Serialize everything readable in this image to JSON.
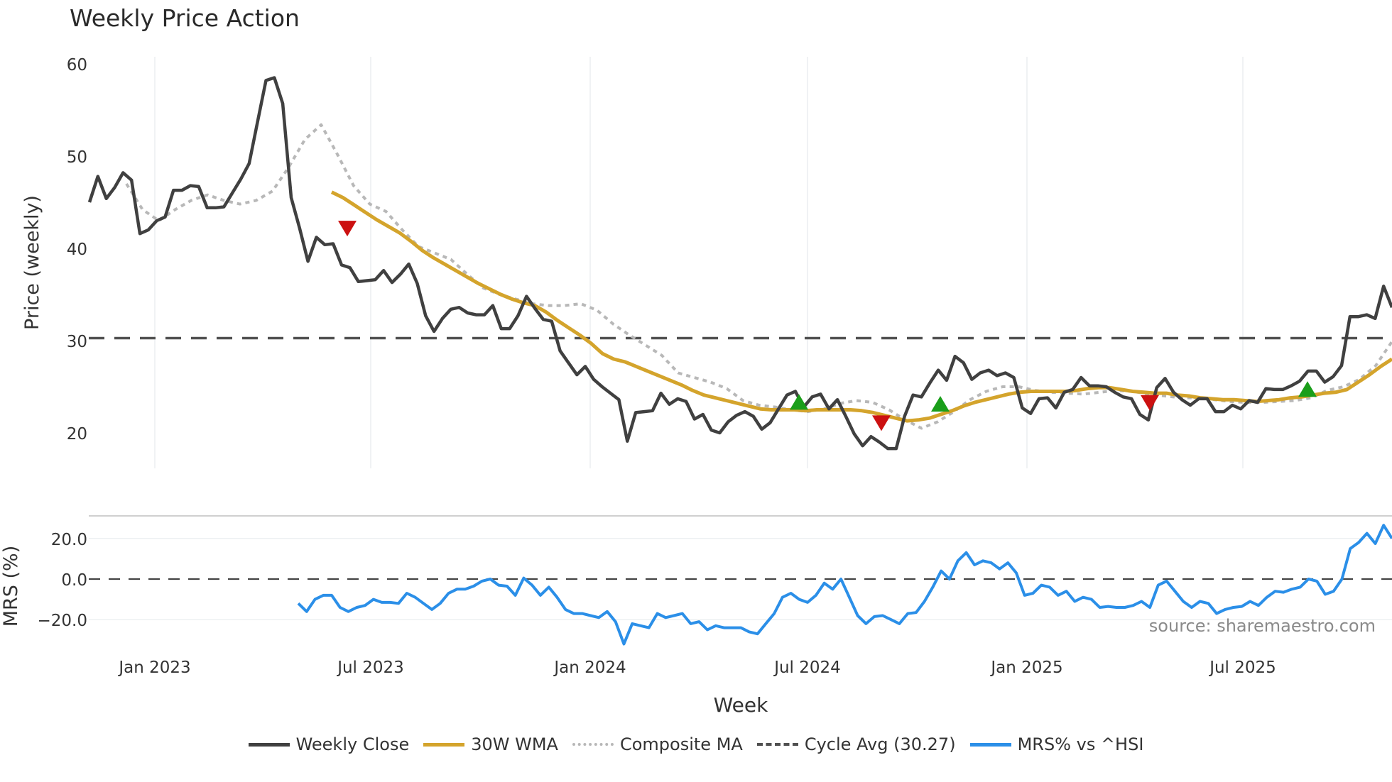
{
  "title": "Weekly Price Action",
  "source": "source: sharemaestro.com",
  "legend": [
    {
      "label": "Weekly Close",
      "color": "#404040",
      "style": "solid"
    },
    {
      "label": "30W WMA",
      "color": "#d4a42c",
      "style": "solid"
    },
    {
      "label": "Composite MA",
      "color": "#b8b8b8",
      "style": "dotted"
    },
    {
      "label": "Cycle Avg (30.27)",
      "color": "#505050",
      "style": "dashed"
    },
    {
      "label": "MRS% vs ^HSI",
      "color": "#2b8fe8",
      "style": "solid"
    }
  ],
  "chart_data": [
    {
      "type": "line",
      "title": "Weekly Price Action",
      "xlabel": "Week",
      "ylabel": "Price (weekly)",
      "ylim": [
        15.5,
        61
      ],
      "yticks": [
        20,
        30,
        40,
        50,
        60
      ],
      "xticks": [
        "Jan 2023",
        "Jul 2023",
        "Jan 2024",
        "Jul 2024",
        "Jan 2025",
        "Jul 2025"
      ],
      "grid": "vertical",
      "x_range": [
        "2022-11",
        "2025-10"
      ],
      "series": [
        {
          "name": "Weekly Close",
          "color": "#404040",
          "values": [
            45,
            47.8,
            45.4,
            46.6,
            48.2,
            47.4,
            41.6,
            42,
            43,
            43.4,
            46.3,
            46.3,
            46.8,
            46.7,
            44.4,
            44.4,
            44.5,
            46,
            47.5,
            49.2,
            53.7,
            58.2,
            58.5,
            55.7,
            45.5,
            42.2,
            38.6,
            41.2,
            40.4,
            40.5,
            38.2,
            37.9,
            36.4,
            36.5,
            36.6,
            37.6,
            36.3,
            37.2,
            38.3,
            36.2,
            32.7,
            31,
            32.4,
            33.4,
            33.6,
            33,
            32.8,
            32.8,
            33.8,
            31.3,
            31.3,
            32.7,
            34.8,
            33.5,
            32.3,
            32.1,
            28.9,
            27.6,
            26.3,
            27.2,
            25.8,
            25,
            24.3,
            23.6,
            19.1,
            22.2,
            22.3,
            22.4,
            24.3,
            23.1,
            23.7,
            23.4,
            21.5,
            22,
            20.3,
            20,
            21.2,
            21.9,
            22.3,
            21.8,
            20.4,
            21.1,
            22.6,
            24.1,
            24.5,
            22.8,
            23.9,
            24.2,
            22.6,
            23.6,
            21.8,
            19.9,
            18.6,
            19.6,
            19,
            18.3,
            18.3,
            21.8,
            24.1,
            23.9,
            25.4,
            26.8,
            25.7,
            28.3,
            27.6,
            25.8,
            26.5,
            26.8,
            26.2,
            26.5,
            26,
            22.7,
            22.1,
            23.7,
            23.8,
            22.7,
            24.4,
            24.7,
            26,
            25.1,
            25.1,
            25,
            24.4,
            23.9,
            23.7,
            22,
            21.4,
            24.9,
            25.9,
            24.4,
            23.6,
            23,
            23.7,
            23.7,
            22.3,
            22.3,
            23,
            22.6,
            23.5,
            23.3,
            24.8,
            24.7,
            24.7,
            25.1,
            25.6,
            26.7,
            26.7,
            25.5,
            26.1,
            27.3,
            32.6,
            32.6,
            32.8,
            32.4,
            35.9,
            33.6
          ]
        },
        {
          "name": "30W WMA",
          "color": "#d4a42c",
          "values": [
            46.1,
            45.5,
            44.7,
            43.9,
            43.1,
            42.4,
            41.7,
            40.8,
            39.8,
            39,
            38.3,
            37.6,
            36.9,
            36.2,
            35.6,
            35,
            34.5,
            34.1,
            33.8,
            33.1,
            32.2,
            31.4,
            30.6,
            29.7,
            28.6,
            28,
            27.7,
            27.2,
            26.7,
            26.2,
            25.7,
            25.2,
            24.6,
            24.1,
            23.8,
            23.5,
            23.2,
            22.9,
            22.6,
            22.5,
            22.5,
            22.5,
            22.4,
            22.5,
            22.5,
            22.5,
            22.5,
            22.4,
            22.2,
            21.9,
            21.6,
            21.3,
            21.4,
            21.6,
            22,
            22.4,
            22.9,
            23.3,
            23.6,
            23.9,
            24.2,
            24.4,
            24.5,
            24.5,
            24.5,
            24.5,
            24.6,
            24.8,
            24.9,
            24.9,
            24.7,
            24.5,
            24.4,
            24.3,
            24.3,
            24.1,
            24,
            23.8,
            23.7,
            23.6,
            23.6,
            23.5,
            23.4,
            23.5,
            23.6,
            23.8,
            23.9,
            24.1,
            24.3,
            24.4,
            24.7,
            25.5,
            26.3,
            27.2,
            28
          ]
        },
        {
          "name": "Composite MA",
          "color": "#b8b8b8",
          "values": [
            47,
            44.2,
            43,
            44.2,
            45.2,
            45.8,
            45.2,
            44.8,
            45.2,
            46.2,
            48.8,
            51.8,
            53.4,
            50.2,
            46.8,
            44.8,
            44,
            42,
            40.2,
            39.5,
            38.8,
            37.2,
            35.7,
            35,
            34.5,
            34,
            33.8,
            33.8,
            34,
            33.3,
            31.8,
            30.6,
            29.5,
            28.4,
            26.5,
            26,
            25.5,
            24.8,
            23.5,
            23,
            22.8,
            22.5,
            22.3,
            22.6,
            23.2,
            23.5,
            23.3,
            22.5,
            21.4,
            20.5,
            21.2,
            22.3,
            23.6,
            24.5,
            25,
            25,
            24.6,
            24.4,
            24.3,
            24.2,
            24.4,
            24.6,
            24.5,
            24.2,
            24,
            23.8,
            23.8,
            23.6,
            23.4,
            23.3,
            23.3,
            23.4,
            23.5,
            23.8,
            24.6,
            25,
            25.8,
            27.3,
            29.9
          ]
        },
        {
          "name": "Cycle Avg (30.27)",
          "color": "#505050",
          "style": "dashed",
          "values": [
            30.27
          ]
        }
      ],
      "markers": [
        {
          "type": "sell",
          "shape": "down-triangle",
          "color": "#cc1111",
          "x_date": "2023-06",
          "y": 42.3
        },
        {
          "type": "buy",
          "shape": "up-triangle",
          "color": "#1a9e1a",
          "x_date": "2024-06",
          "y": 23.2
        },
        {
          "type": "sell",
          "shape": "down-triangle",
          "color": "#cc1111",
          "x_date": "2024-09",
          "y": 21.2
        },
        {
          "type": "buy",
          "shape": "up-triangle",
          "color": "#1a9e1a",
          "x_date": "2024-11",
          "y": 23
        },
        {
          "type": "sell",
          "shape": "down-triangle",
          "color": "#cc1111",
          "x_date": "2025-04",
          "y": 23.4
        },
        {
          "type": "buy",
          "shape": "up-triangle",
          "color": "#1a9e1a",
          "x_date": "2025-08",
          "y": 24.6
        }
      ]
    },
    {
      "type": "line",
      "ylabel": "MRS (%)",
      "ylim": [
        -33,
        32
      ],
      "yticks": [
        "20.0",
        "0.0",
        "−20.0"
      ],
      "reference_line": {
        "y": 0,
        "style": "dashed"
      },
      "series": [
        {
          "name": "MRS% vs ^HSI",
          "color": "#2b8fe8",
          "values": [
            -12,
            -16,
            -10,
            -8,
            -8,
            -14,
            -16,
            -14,
            -13,
            -10,
            -11.5,
            -11.5,
            -12,
            -7,
            -9,
            -12,
            -15,
            -12,
            -7,
            -5,
            -5,
            -3.5,
            -1,
            0,
            -3,
            -3.5,
            -8,
            0.5,
            -3,
            -8,
            -4,
            -9,
            -15,
            -17,
            -17,
            -18,
            -19,
            -16,
            -21,
            -32,
            -22,
            -23,
            -24,
            -17,
            -19,
            -18,
            -17,
            -22,
            -21,
            -25,
            -23,
            -24,
            -24,
            -24,
            -26,
            -27,
            -22,
            -17,
            -9,
            -7,
            -10,
            -11.5,
            -8,
            -2,
            -5,
            0,
            -9,
            -18,
            -22,
            -18.5,
            -18,
            -20,
            -22,
            -17,
            -16.5,
            -11,
            -4,
            4,
            0,
            9,
            13,
            7,
            9,
            8,
            5,
            8,
            3,
            -8,
            -7,
            -3,
            -4,
            -8,
            -6,
            -11,
            -9,
            -10,
            -14,
            -13.5,
            -14,
            -14,
            -13,
            -11,
            -14,
            -3,
            -1,
            -6,
            -11,
            -14,
            -11,
            -12,
            -17,
            -15,
            -14,
            -13.5,
            -11,
            -13,
            -9,
            -6,
            -6.5,
            -5,
            -4,
            0,
            -1,
            -7.5,
            -6,
            0,
            15,
            18,
            22.5,
            17.5,
            26.5,
            20
          ]
        }
      ],
      "annotation": "source: sharemaestro.com"
    }
  ]
}
